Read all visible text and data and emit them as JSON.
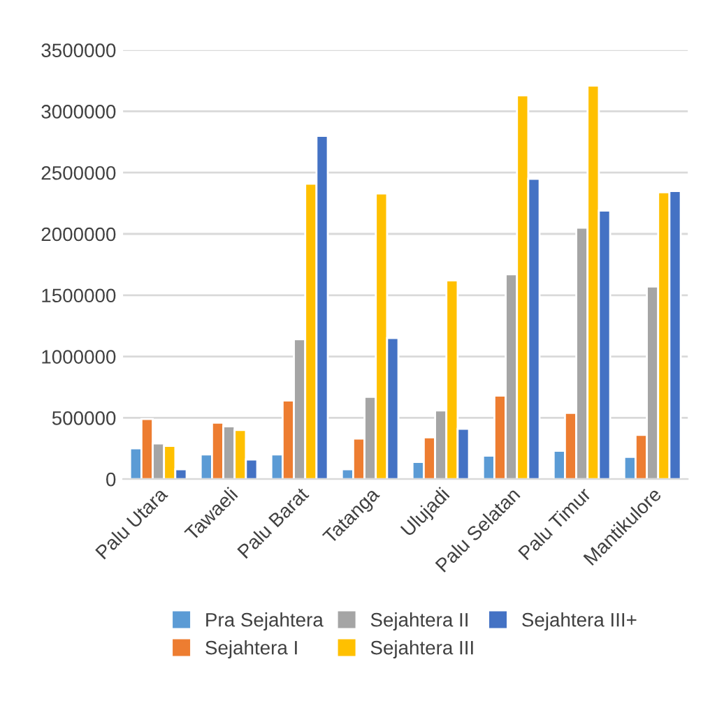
{
  "chart_data": {
    "type": "bar",
    "categories": [
      "Palu Utara",
      "Tawaeli",
      "Palu Barat",
      "Tatanga",
      "Ulujadi",
      "Palu Selatan",
      "Palu Timur",
      "Mantikulore"
    ],
    "series": [
      {
        "name": "Pra Sejahtera",
        "color": "#5b9bd5",
        "values": [
          250000,
          200000,
          200000,
          80000,
          140000,
          190000,
          230000,
          180000
        ]
      },
      {
        "name": "Sejahtera I",
        "color": "#ed7d31",
        "values": [
          490000,
          460000,
          640000,
          330000,
          340000,
          680000,
          540000,
          360000
        ]
      },
      {
        "name": "Sejahtera II",
        "color": "#a5a5a5",
        "values": [
          290000,
          430000,
          1140000,
          670000,
          560000,
          1670000,
          2050000,
          1570000
        ]
      },
      {
        "name": "Sejahtera III",
        "color": "#ffc000",
        "values": [
          270000,
          400000,
          2410000,
          2330000,
          1620000,
          3130000,
          3210000,
          2340000
        ]
      },
      {
        "name": "Sejahtera III+",
        "color": "#4472c4",
        "values": [
          80000,
          160000,
          2800000,
          1150000,
          410000,
          2450000,
          2190000,
          2350000
        ]
      }
    ],
    "ylim": [
      0,
      3500000
    ],
    "yticks": [
      0,
      500000,
      1000000,
      1500000,
      2000000,
      2500000,
      3000000,
      3500000
    ],
    "grid": "y",
    "legend": "bottom"
  }
}
